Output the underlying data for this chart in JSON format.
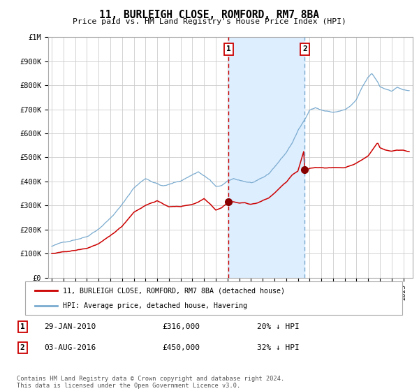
{
  "title": "11, BURLEIGH CLOSE, ROMFORD, RM7 8BA",
  "subtitle": "Price paid vs. HM Land Registry's House Price Index (HPI)",
  "legend_line1": "11, BURLEIGH CLOSE, ROMFORD, RM7 8BA (detached house)",
  "legend_line2": "HPI: Average price, detached house, Havering",
  "sale1_date": "29-JAN-2010",
  "sale1_price": 316000,
  "sale1_label": "20% ↓ HPI",
  "sale2_date": "03-AUG-2016",
  "sale2_price": 450000,
  "sale2_label": "32% ↓ HPI",
  "footer": "Contains HM Land Registry data © Crown copyright and database right 2024.\nThis data is licensed under the Open Government Licence v3.0.",
  "hpi_color": "#7aabcf",
  "price_color": "#cc0000",
  "sale_marker_color": "#880000",
  "vline1_color": "#cc0000",
  "vline2_color": "#7aabcf",
  "shade_color": "#ddeeff",
  "grid_color": "#cccccc",
  "bg_color": "#ffffff",
  "ylim": [
    0,
    1000000
  ],
  "yticks": [
    0,
    100000,
    200000,
    300000,
    400000,
    500000,
    600000,
    700000,
    800000,
    900000,
    1000000
  ],
  "sale1_x": 2010.08,
  "sale2_x": 2016.59,
  "xlim_left": 1994.7,
  "xlim_right": 2025.8
}
